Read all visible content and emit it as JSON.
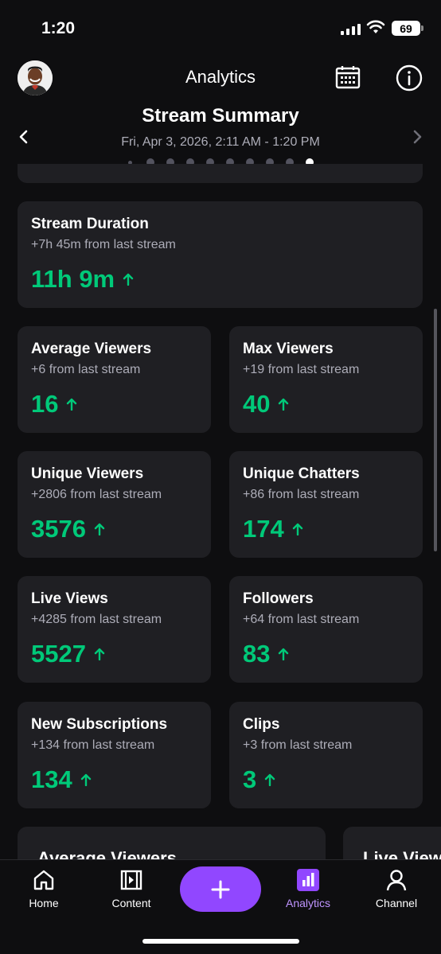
{
  "status": {
    "time": "1:20",
    "battery": "69"
  },
  "header": {
    "title": "Analytics"
  },
  "summary": {
    "title": "Stream Summary",
    "date_range": "Fri, Apr 3, 2026, 2:11 AM - 1:20 PM",
    "page_count": 10,
    "active_page": 10
  },
  "cards": [
    {
      "title": "Stream Duration",
      "delta": "+7h 45m from last stream",
      "value": "11h 9m"
    },
    {
      "title": "Average Viewers",
      "delta": "+6 from last stream",
      "value": "16"
    },
    {
      "title": "Max Viewers",
      "delta": "+19 from last stream",
      "value": "40"
    },
    {
      "title": "Unique Viewers",
      "delta": "+2806 from last stream",
      "value": "3576"
    },
    {
      "title": "Unique Chatters",
      "delta": "+86 from last stream",
      "value": "174"
    },
    {
      "title": "Live Views",
      "delta": "+4285 from last stream",
      "value": "5527"
    },
    {
      "title": "Followers",
      "delta": "+64 from last stream",
      "value": "83"
    },
    {
      "title": "New Subscriptions",
      "delta": "+134 from last stream",
      "value": "134"
    },
    {
      "title": "Clips",
      "delta": "+3 from last stream",
      "value": "3"
    }
  ],
  "peek_cards": [
    "Average Viewers",
    "Live Views"
  ],
  "colors": {
    "accent": "#9147ff",
    "positive": "#00c979",
    "card_bg": "#1f1f23"
  },
  "tabs": [
    {
      "label": "Home",
      "icon": "home-icon"
    },
    {
      "label": "Content",
      "icon": "film-icon"
    },
    {
      "label": "Analytics",
      "icon": "bar-chart-icon",
      "active": true
    },
    {
      "label": "Channel",
      "icon": "person-icon"
    }
  ]
}
